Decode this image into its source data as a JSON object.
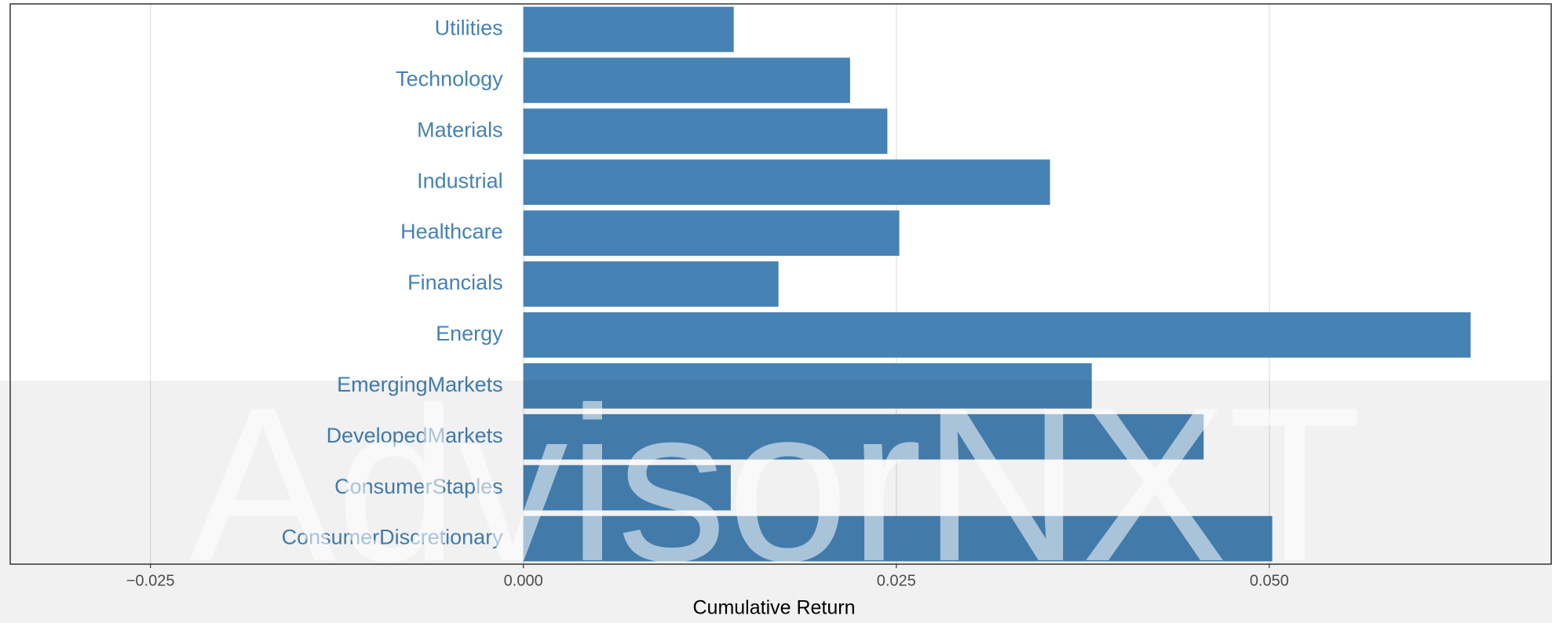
{
  "chart_data": {
    "type": "bar",
    "orientation": "horizontal",
    "x_axis_label": "Cumulative Return",
    "categories": [
      "Utilities",
      "Technology",
      "Materials",
      "Industrial",
      "Healthcare",
      "Financials",
      "Energy",
      "EmergingMarkets",
      "DevelopedMarkets",
      "ConsumerStaples",
      "ConsumerDiscretionary"
    ],
    "values": [
      0.0141,
      0.0219,
      0.0244,
      0.0353,
      0.0252,
      0.0171,
      0.0635,
      0.0381,
      0.0456,
      0.0139,
      0.0502
    ],
    "color": "#4682b4",
    "xlim": [
      -0.0344,
      0.0689
    ],
    "xticks": [
      {
        "value": -0.025,
        "label": "−0.025"
      },
      {
        "value": 0,
        "label": "0.000"
      },
      0.025,
      {
        "value": 0.05,
        "label": "0.050"
      }
    ],
    "grid": true,
    "watermark": "AdvisorNXT"
  }
}
